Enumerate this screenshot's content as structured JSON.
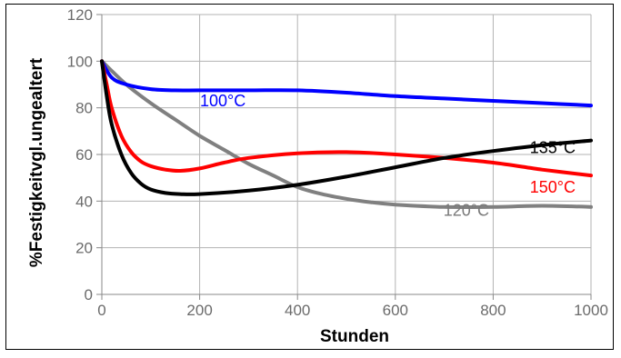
{
  "chart_data": {
    "type": "line",
    "xlabel": "Stunden",
    "ylabel": "%Festigkeitvgl.ungealtert",
    "xlim": [
      0,
      1000
    ],
    "ylim": [
      0,
      120
    ],
    "x_ticks": [
      "0",
      "200",
      "400",
      "600",
      "800",
      "1000"
    ],
    "y_ticks": [
      "0",
      "20",
      "40",
      "60",
      "80",
      "100",
      "120"
    ],
    "grid": true,
    "series": [
      {
        "name": "100°C",
        "color": "#0000ff",
        "x": [
          0,
          20,
          50,
          100,
          150,
          200,
          300,
          400,
          500,
          600,
          700,
          800,
          900,
          1000
        ],
        "y": [
          100,
          93,
          90,
          88,
          87.5,
          87.5,
          87.5,
          87.5,
          86.5,
          85,
          84,
          83,
          82,
          81
        ]
      },
      {
        "name": "120°C",
        "color": "#808080",
        "x": [
          0,
          50,
          100,
          150,
          200,
          250,
          300,
          350,
          400,
          450,
          500,
          550,
          600,
          700,
          800,
          900,
          1000
        ],
        "y": [
          100,
          90,
          82,
          75,
          68,
          62,
          56,
          51,
          46,
          43,
          41,
          39.5,
          38.5,
          37.5,
          37.5,
          38,
          37.5
        ]
      },
      {
        "name": "135°C",
        "color": "#000000",
        "x": [
          0,
          10,
          20,
          40,
          60,
          80,
          100,
          130,
          160,
          200,
          300,
          400,
          500,
          600,
          700,
          800,
          900,
          1000
        ],
        "y": [
          100,
          85,
          73,
          60,
          52,
          47.5,
          45,
          43.5,
          43,
          43,
          44.5,
          47,
          50.5,
          54.5,
          58.5,
          61.5,
          64,
          66
        ]
      },
      {
        "name": "150°C",
        "color": "#ff0000",
        "x": [
          0,
          10,
          20,
          40,
          60,
          80,
          100,
          130,
          160,
          200,
          250,
          300,
          400,
          500,
          600,
          700,
          800,
          900,
          1000
        ],
        "y": [
          100,
          90,
          80,
          68,
          61,
          57,
          55,
          53.5,
          53,
          54,
          56.5,
          58.5,
          60.5,
          61,
          60,
          58.5,
          56.5,
          53.5,
          51
        ]
      }
    ]
  }
}
